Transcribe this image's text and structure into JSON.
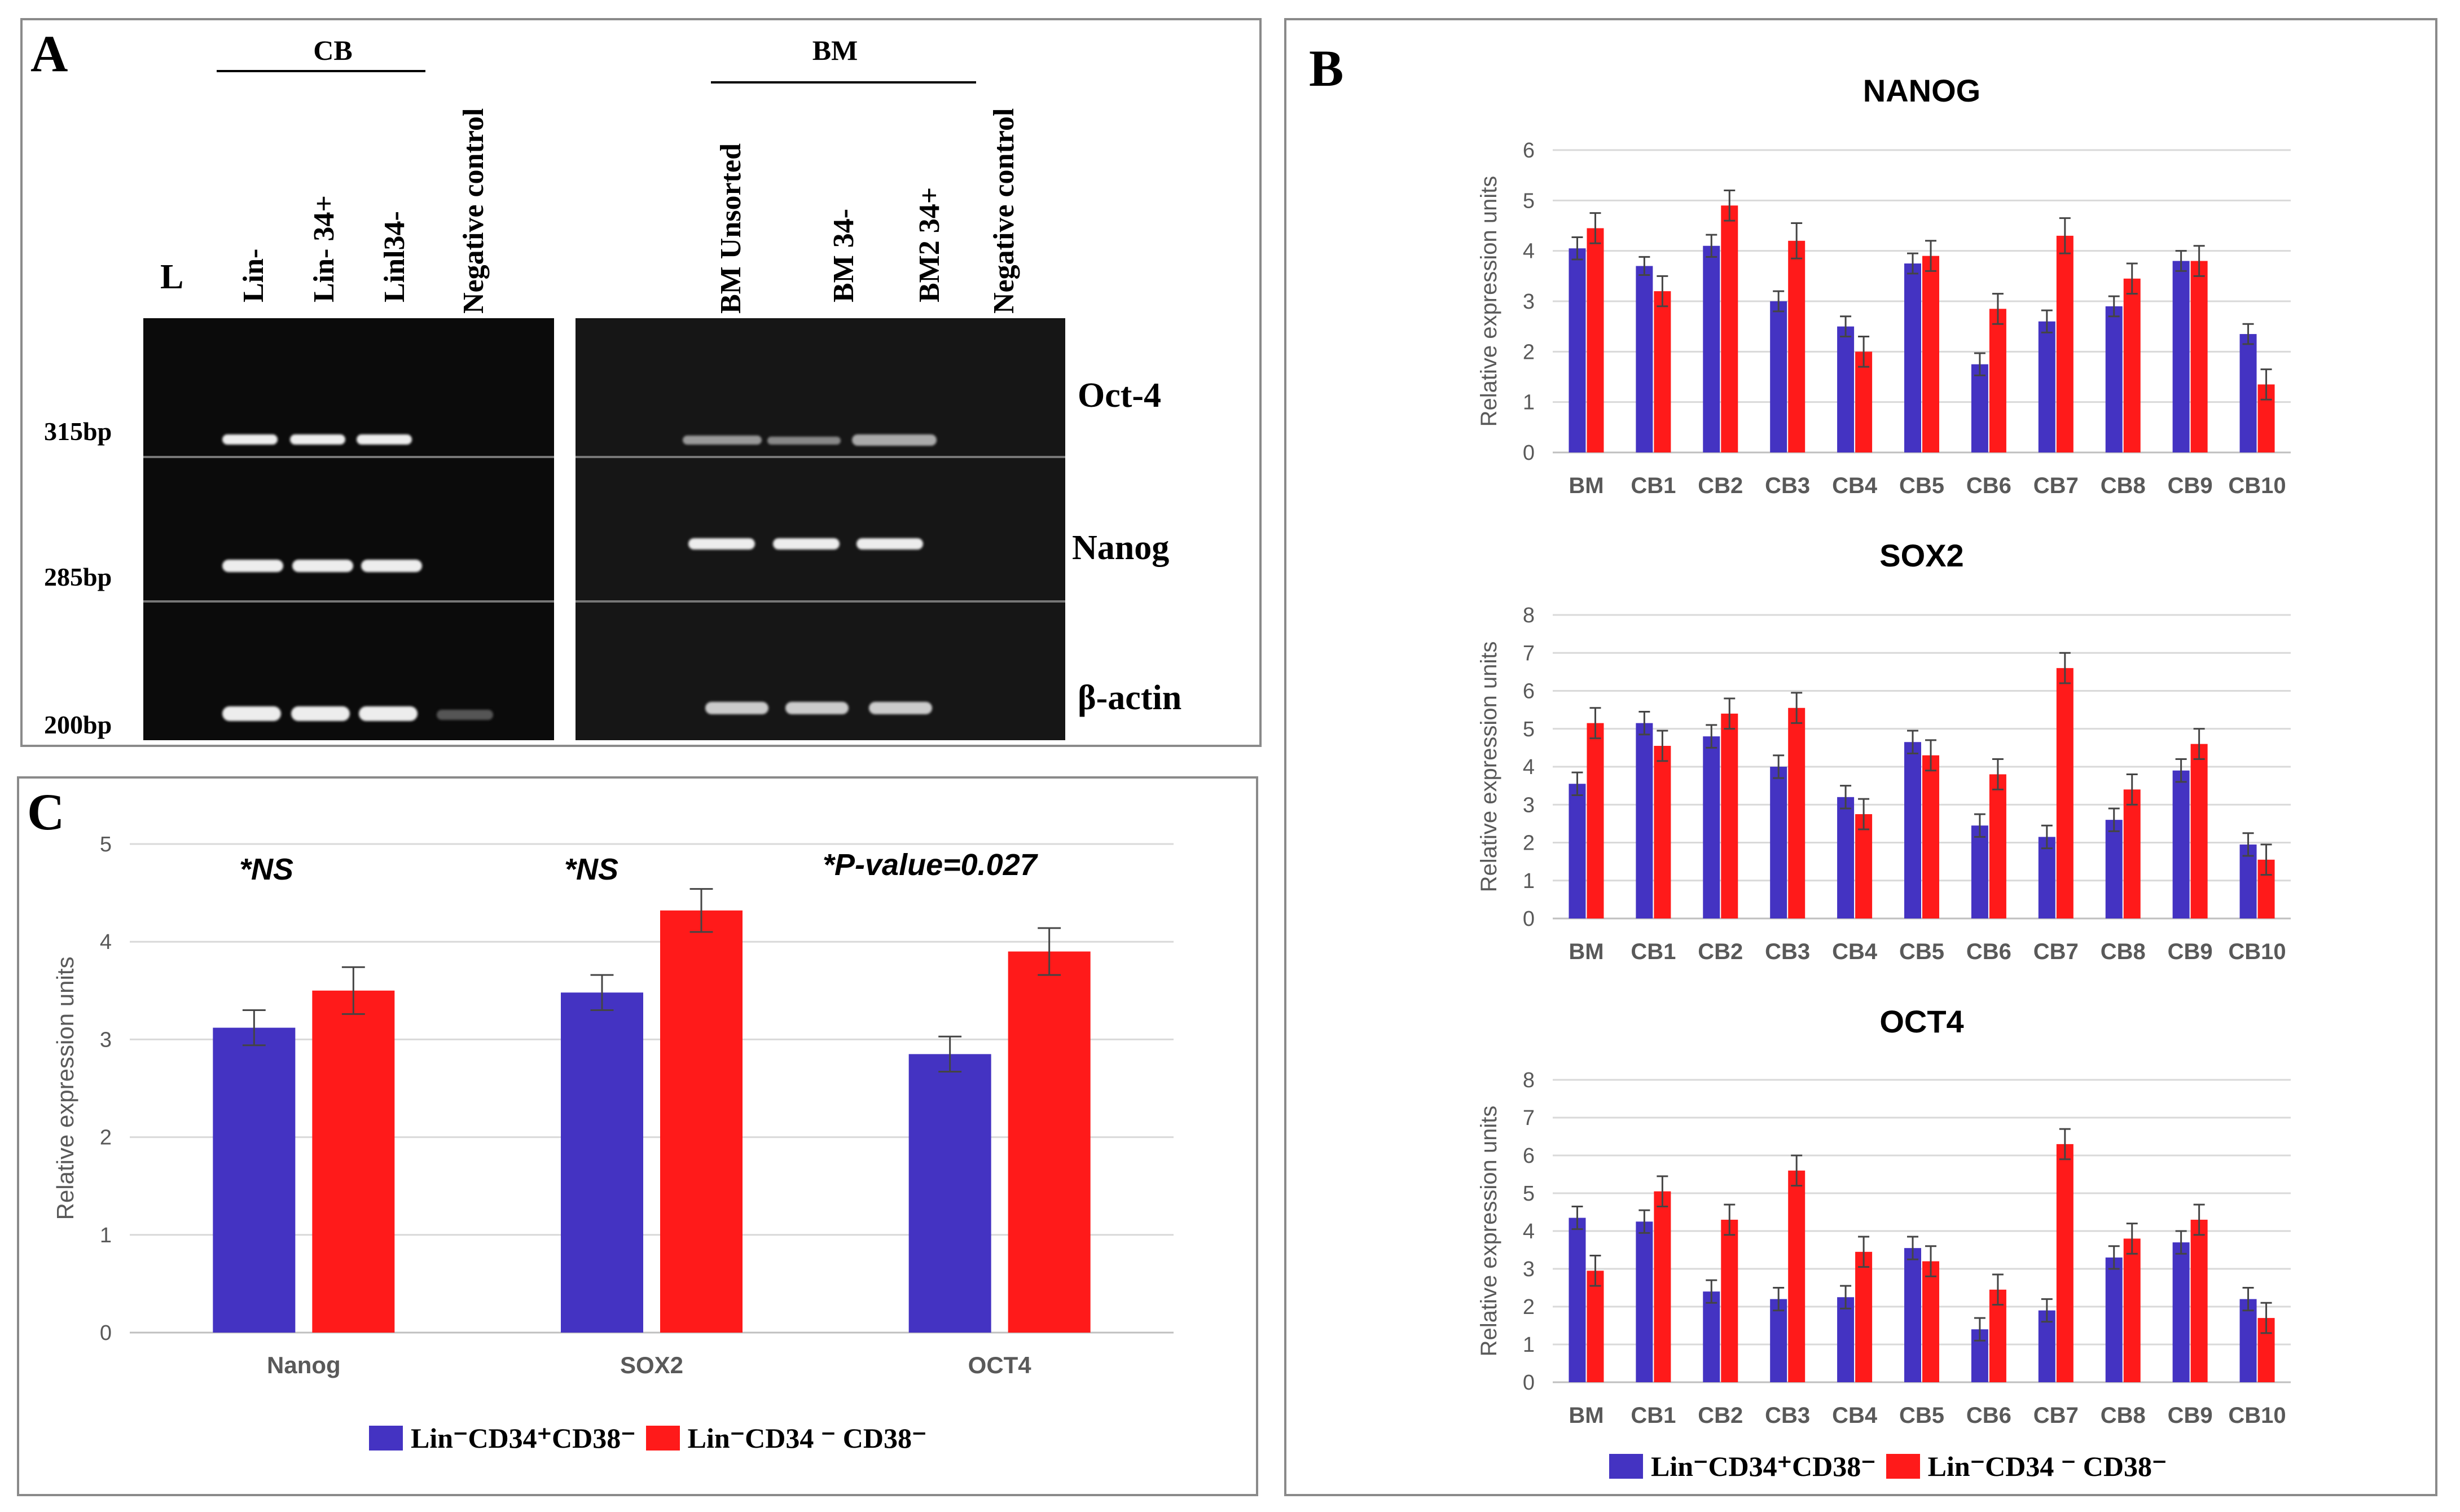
{
  "panel_a": {
    "label": "A",
    "cb_group": "CB",
    "bm_group": "BM",
    "ladder_label": "L",
    "cb_lanes": [
      "Lin-",
      "Lin- 34+",
      "Linl34-",
      "Negative control"
    ],
    "bm_lanes": [
      "BM  Unsorted",
      "BM   34-",
      "BM2  34+",
      "Negative control"
    ],
    "sizes": [
      "315bp",
      "285bp",
      "200bp"
    ],
    "genes": [
      "Oct-4",
      "Nanog",
      "β-actin"
    ]
  },
  "panel_b": {
    "label": "B"
  },
  "panel_c": {
    "label": "C",
    "significance": [
      "*NS",
      "*NS",
      "*P-value=0.027"
    ]
  },
  "legend": {
    "series1": "Lin⁻CD34⁺CD38⁻",
    "series2": "Lin⁻CD34 ⁻ CD38⁻"
  },
  "colors": {
    "series1": "#4433c2",
    "series2": "#ff1a1a",
    "grid": "#d9d9d9"
  },
  "chart_data": [
    {
      "id": "nanog",
      "type": "bar",
      "title": "NANOG",
      "ylabel": "Relative expression units",
      "ylim": [
        0,
        6
      ],
      "yticks": [
        0,
        1,
        2,
        3,
        4,
        5,
        6
      ],
      "categories": [
        "BM",
        "CB1",
        "CB2",
        "CB3",
        "CB4",
        "CB5",
        "CB6",
        "CB7",
        "CB8",
        "CB9",
        "CB10"
      ],
      "series": [
        {
          "values": [
            4.05,
            3.7,
            4.1,
            3.0,
            2.5,
            3.75,
            1.75,
            2.6,
            2.9,
            3.8,
            2.35
          ],
          "errors": [
            0.22,
            0.18,
            0.22,
            0.2,
            0.2,
            0.2,
            0.22,
            0.22,
            0.2,
            0.2,
            0.2
          ]
        },
        {
          "values": [
            4.45,
            3.2,
            4.9,
            4.2,
            2.0,
            3.9,
            2.85,
            4.3,
            3.45,
            3.8,
            1.35
          ],
          "errors": [
            0.3,
            0.3,
            0.3,
            0.35,
            0.3,
            0.3,
            0.3,
            0.35,
            0.3,
            0.3,
            0.3
          ]
        }
      ]
    },
    {
      "id": "sox2",
      "type": "bar",
      "title": "SOX2",
      "ylabel": "Relative expression units",
      "ylim": [
        0,
        8
      ],
      "yticks": [
        0,
        1,
        2,
        3,
        4,
        5,
        6,
        7,
        8
      ],
      "categories": [
        "BM",
        "CB1",
        "CB2",
        "CB3",
        "CB4",
        "CB5",
        "CB6",
        "CB7",
        "CB8",
        "CB9",
        "CB10"
      ],
      "series": [
        {
          "values": [
            3.55,
            5.15,
            4.8,
            4.0,
            3.2,
            4.65,
            2.45,
            2.15,
            2.6,
            3.9,
            1.95
          ],
          "errors": [
            0.3,
            0.3,
            0.3,
            0.3,
            0.3,
            0.3,
            0.3,
            0.3,
            0.3,
            0.3,
            0.3
          ]
        },
        {
          "values": [
            5.15,
            4.55,
            5.4,
            5.55,
            2.75,
            4.3,
            3.8,
            6.6,
            3.4,
            4.6,
            1.55
          ],
          "errors": [
            0.4,
            0.4,
            0.4,
            0.4,
            0.4,
            0.4,
            0.4,
            0.4,
            0.4,
            0.4,
            0.4
          ]
        }
      ]
    },
    {
      "id": "oct4",
      "type": "bar",
      "title": "OCT4",
      "ylabel": "Relative expression units",
      "ylim": [
        0,
        8
      ],
      "yticks": [
        0,
        1,
        2,
        3,
        4,
        5,
        6,
        7,
        8
      ],
      "categories": [
        "BM",
        "CB1",
        "CB2",
        "CB3",
        "CB4",
        "CB5",
        "CB6",
        "CB7",
        "CB8",
        "CB9",
        "CB10"
      ],
      "series": [
        {
          "values": [
            4.35,
            4.25,
            2.4,
            2.2,
            2.25,
            3.55,
            1.4,
            1.9,
            3.3,
            3.7,
            2.2
          ],
          "errors": [
            0.3,
            0.3,
            0.3,
            0.3,
            0.3,
            0.3,
            0.3,
            0.3,
            0.3,
            0.3,
            0.3
          ]
        },
        {
          "values": [
            2.95,
            5.05,
            4.3,
            5.6,
            3.45,
            3.2,
            2.45,
            6.3,
            3.8,
            4.3,
            1.7
          ],
          "errors": [
            0.4,
            0.4,
            0.4,
            0.4,
            0.4,
            0.4,
            0.4,
            0.4,
            0.4,
            0.4,
            0.4
          ]
        }
      ]
    },
    {
      "id": "summary",
      "type": "bar",
      "title": "",
      "ylabel": "Relative expression units",
      "ylim": [
        0,
        5
      ],
      "yticks": [
        0,
        1,
        2,
        3,
        4,
        5
      ],
      "categories": [
        "Nanog",
        "SOX2",
        "OCT4"
      ],
      "series": [
        {
          "values": [
            3.12,
            3.48,
            2.85
          ],
          "errors": [
            0.18,
            0.18,
            0.18
          ]
        },
        {
          "values": [
            3.5,
            4.32,
            3.9
          ],
          "errors": [
            0.24,
            0.22,
            0.24
          ]
        }
      ]
    }
  ]
}
